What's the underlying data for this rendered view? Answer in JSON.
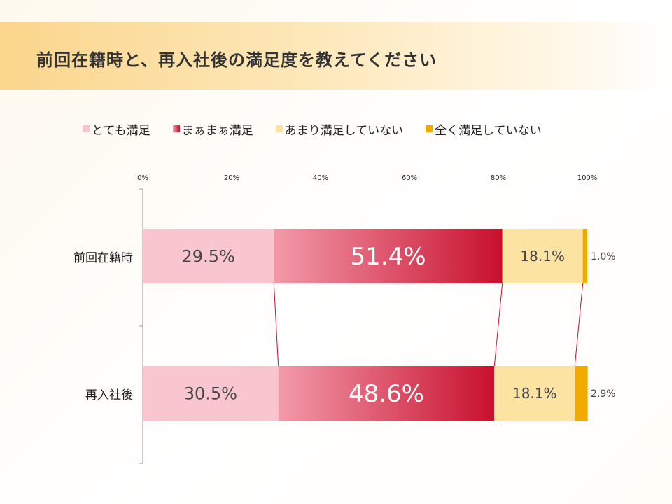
{
  "page": {
    "title": "前回在籍時と、再入社後の満足度を教えてください"
  },
  "chart_data": {
    "type": "bar",
    "orientation": "horizontal",
    "stacked": "100%",
    "categories": [
      "前回在籍時",
      "再入社後"
    ],
    "series": [
      {
        "name": "とても満足",
        "values": [
          29.5,
          30.5
        ],
        "labels": [
          "29.5%",
          "30.5%"
        ],
        "color": "#f9c6d0"
      },
      {
        "name": "まぁまぁ満足",
        "values": [
          51.4,
          48.6
        ],
        "labels": [
          "51.4%",
          "48.6%"
        ],
        "color": "#c8102e"
      },
      {
        "name": "あまり満足していない",
        "values": [
          18.1,
          18.1
        ],
        "labels": [
          "18.1%",
          "18.1%"
        ],
        "color": "#fde3a2"
      },
      {
        "name": "全く満足していない",
        "values": [
          1.0,
          2.9
        ],
        "labels": [
          "1.0%",
          "2.9%"
        ],
        "color": "#f2a900"
      }
    ],
    "xaxis": {
      "ticks": [
        0,
        20,
        40,
        60,
        80,
        100
      ],
      "tick_labels": [
        "0%",
        "20%",
        "40%",
        "60%",
        "80%",
        "100%"
      ],
      "position": "top",
      "range": [
        0,
        100
      ]
    },
    "legend": "top",
    "grid": false,
    "series_lines": true
  }
}
